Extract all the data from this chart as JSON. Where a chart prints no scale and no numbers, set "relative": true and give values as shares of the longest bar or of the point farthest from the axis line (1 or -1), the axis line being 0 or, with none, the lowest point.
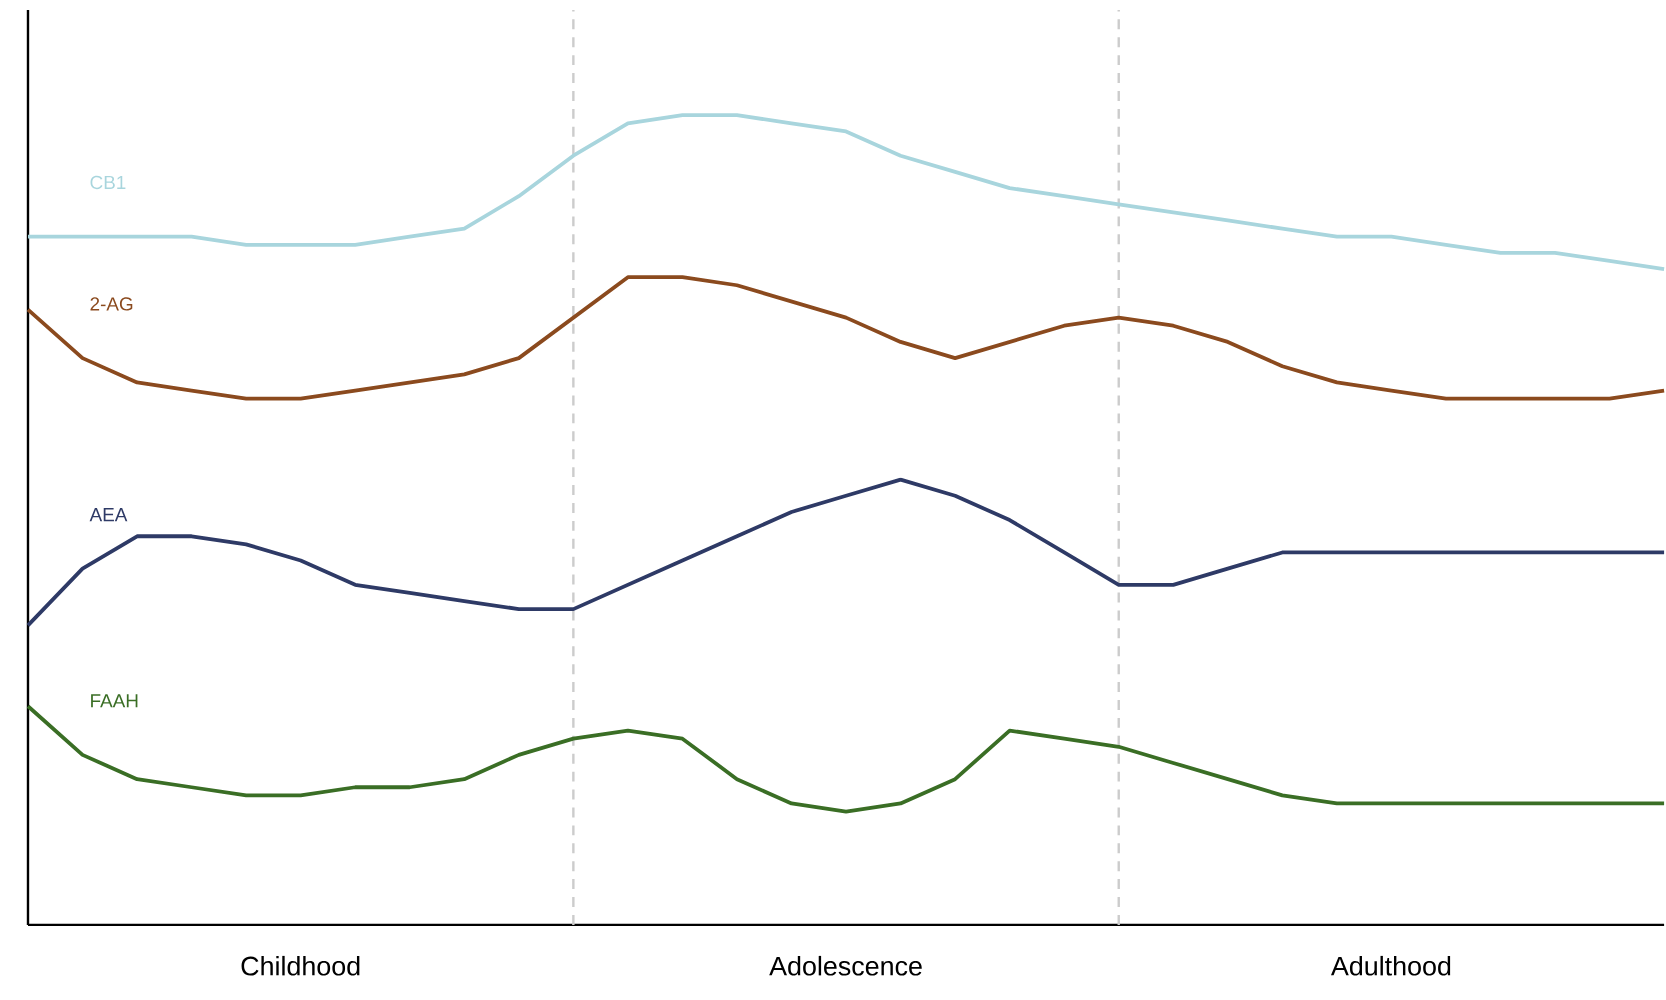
{
  "chart_data": {
    "type": "line",
    "relative": true,
    "tick_labels": "x",
    "marker": "none",
    "line_style": "solid",
    "categories": [
      null,
      null,
      null,
      null,
      null,
      "Childhood",
      null,
      null,
      null,
      null,
      null,
      null,
      null,
      null,
      null,
      "Adolescence",
      null,
      null,
      null,
      null,
      null,
      null,
      null,
      null,
      null,
      "Adulthood",
      null,
      null,
      null,
      null,
      null
    ],
    "series": [
      {
        "name": "CB1",
        "color": "#a8d5dd",
        "values": [
          0.85,
          0.85,
          0.85,
          0.85,
          0.84,
          0.84,
          0.84,
          0.85,
          0.86,
          0.9,
          0.95,
          0.99,
          1.0,
          1.0,
          0.99,
          0.98,
          0.95,
          0.93,
          0.91,
          0.9,
          0.89,
          0.88,
          0.87,
          0.86,
          0.85,
          0.85,
          0.84,
          0.83,
          0.83,
          0.82,
          0.81
        ]
      },
      {
        "name": "2-AG",
        "color": "#8b4a1e",
        "values": [
          0.76,
          0.7,
          0.67,
          0.66,
          0.65,
          0.65,
          0.66,
          0.67,
          0.68,
          0.7,
          0.75,
          0.8,
          0.8,
          0.79,
          0.77,
          0.75,
          0.72,
          0.7,
          0.72,
          0.74,
          0.75,
          0.74,
          0.72,
          0.69,
          0.67,
          0.66,
          0.65,
          0.65,
          0.65,
          0.65,
          0.66
        ]
      },
      {
        "name": "AEA",
        "color": "#2e3a66",
        "values": [
          0.37,
          0.44,
          0.48,
          0.48,
          0.47,
          0.45,
          0.42,
          0.41,
          0.4,
          0.39,
          0.39,
          0.42,
          0.45,
          0.48,
          0.51,
          0.53,
          0.55,
          0.53,
          0.5,
          0.46,
          0.42,
          0.42,
          0.44,
          0.46,
          0.46,
          0.46,
          0.46,
          0.46,
          0.46,
          0.46,
          0.46
        ]
      },
      {
        "name": "FAAH",
        "color": "#3a6e25",
        "values": [
          0.27,
          0.21,
          0.18,
          0.17,
          0.16,
          0.16,
          0.17,
          0.17,
          0.18,
          0.21,
          0.23,
          0.24,
          0.23,
          0.18,
          0.15,
          0.14,
          0.15,
          0.18,
          0.24,
          0.23,
          0.22,
          0.2,
          0.18,
          0.16,
          0.15,
          0.15,
          0.15,
          0.15,
          0.15,
          0.15,
          0.15
        ]
      }
    ]
  }
}
